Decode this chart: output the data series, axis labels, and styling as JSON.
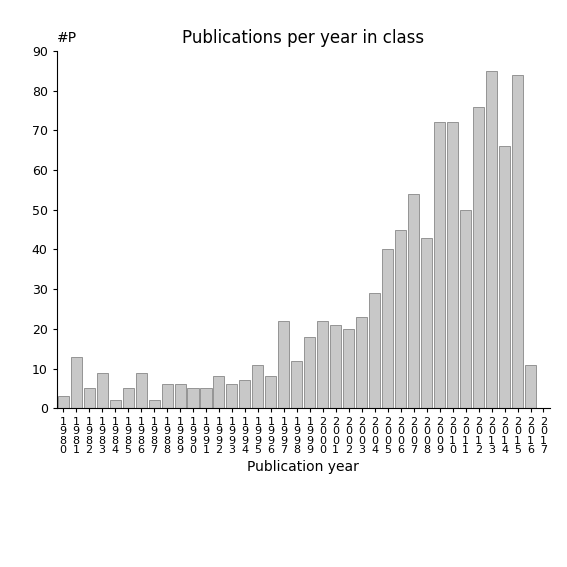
{
  "title": "Publications per year in class",
  "xlabel": "Publication year",
  "ylim": [
    0,
    90
  ],
  "yticks": [
    0,
    10,
    20,
    30,
    40,
    50,
    60,
    70,
    80,
    90
  ],
  "years": [
    "1980",
    "1981",
    "1982",
    "1983",
    "1984",
    "1985",
    "1986",
    "1987",
    "1988",
    "1989",
    "1990",
    "1991",
    "1992",
    "1993",
    "1994",
    "1995",
    "1996",
    "1997",
    "1998",
    "1999",
    "2000",
    "2001",
    "2002",
    "2003",
    "2004",
    "2005",
    "2006",
    "2007",
    "2008",
    "2009",
    "2010",
    "2011",
    "2012",
    "2013",
    "2014",
    "2015",
    "2016",
    "2017"
  ],
  "values": [
    3,
    13,
    5,
    9,
    2,
    5,
    9,
    2,
    6,
    6,
    5,
    5,
    8,
    6,
    7,
    11,
    8,
    22,
    12,
    18,
    22,
    21,
    20,
    23,
    29,
    40,
    45,
    54,
    43,
    72,
    72,
    50,
    76,
    85,
    66,
    84,
    11,
    0
  ],
  "bar_color": "#c8c8c8",
  "bar_edge_color": "#888888",
  "background_color": "#ffffff",
  "title_fontsize": 12,
  "axis_label_fontsize": 10,
  "tick_label_fontsize": 9,
  "xtick_label_fontsize": 8,
  "yp_label": "#P"
}
